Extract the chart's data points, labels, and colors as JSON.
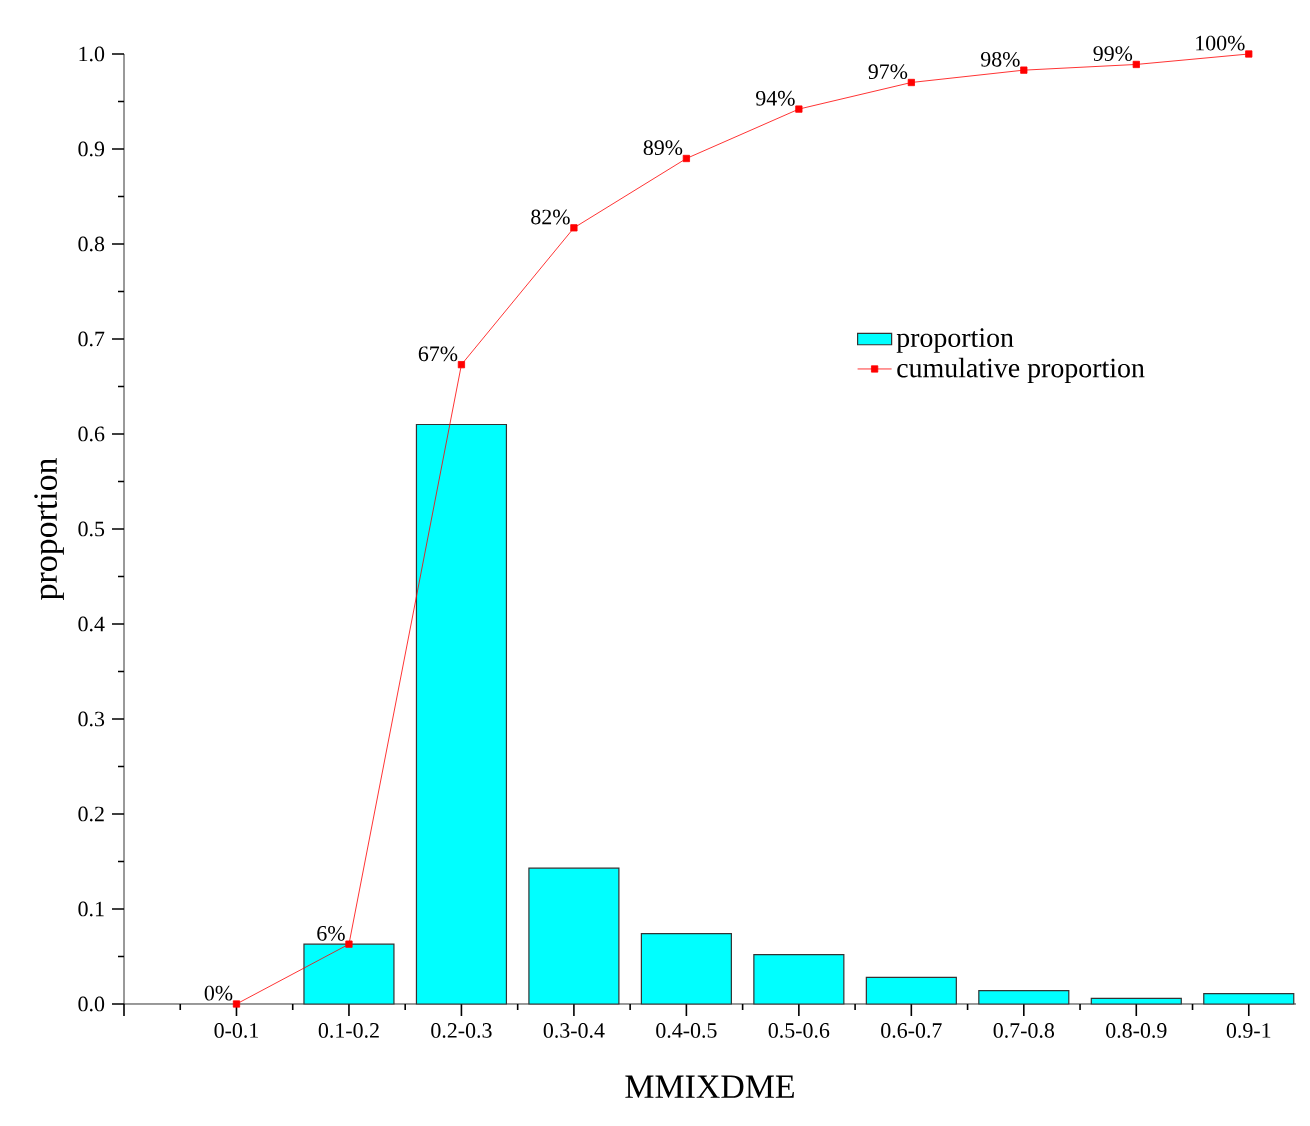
{
  "chart_data": {
    "type": "bar",
    "xlabel": "MMIXDME",
    "ylabel": "proportion",
    "categories": [
      "0-0.1",
      "0.1-0.2",
      "0.2-0.3",
      "0.3-0.4",
      "0.4-0.5",
      "0.5-0.6",
      "0.6-0.7",
      "0.7-0.8",
      "0.8-0.9",
      "0.9-1"
    ],
    "series": [
      {
        "name": "proportion",
        "color": "#00ffff",
        "values": [
          null,
          0.063,
          0.61,
          0.143,
          0.074,
          0.052,
          0.028,
          0.014,
          0.006,
          0.011
        ]
      },
      {
        "name": "cumulative proportion",
        "type": "line",
        "color": "#ff0000",
        "marker": "square",
        "values": [
          0,
          0.063,
          0.673,
          0.817,
          0.89,
          0.942,
          0.97,
          0.983,
          0.989,
          1.0
        ],
        "value_labels": [
          "0%",
          "6%",
          "67%",
          "82%",
          "89%",
          "94%",
          "97%",
          "98%",
          "99%",
          "100%"
        ]
      }
    ],
    "ylim": [
      0,
      1.0
    ],
    "yticks": [
      {
        "value": 0,
        "label": "0.0"
      },
      0.1,
      0.2,
      0.3,
      0.4,
      0.5,
      0.6,
      0.7,
      0.8,
      0.9,
      {
        "value": 1.0,
        "label": "1.0"
      }
    ],
    "legend": "right",
    "grid": false
  }
}
